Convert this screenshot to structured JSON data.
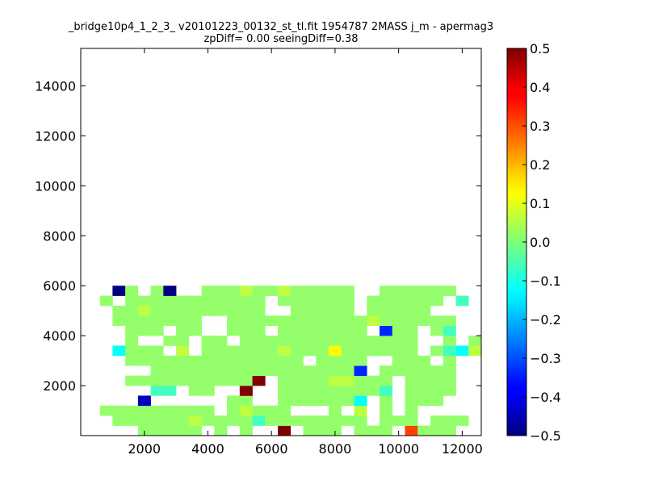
{
  "chart_data": {
    "type": "heatmap",
    "title": "_bridge10p4_1_2_3_ v20101223_00132_st_tl.fit 1954787 2MASS j_m - apermag3",
    "subtitle": "zpDiff= 0.00 seeingDiff=0.38",
    "xlabel": "",
    "ylabel": "",
    "xlim": [
      0,
      12600
    ],
    "ylim": [
      0,
      15500
    ],
    "xticks": [
      2000,
      4000,
      6000,
      8000,
      10000,
      12000
    ],
    "yticks": [
      2000,
      4000,
      6000,
      8000,
      10000,
      12000,
      14000
    ],
    "grid": false,
    "bin_size": 400,
    "x_origin": 600,
    "y_origin": 0,
    "colormap": "jet",
    "colorbar": {
      "min": -0.5,
      "max": 0.5,
      "ticks": [
        -0.5,
        -0.4,
        -0.3,
        -0.2,
        -0.1,
        0.0,
        0.1,
        0.2,
        0.3,
        0.4,
        0.5
      ]
    },
    "rows": [
      "...ggggg.g.g..a.ggg.ggg.dggg...",
      ".ggggggeggggfgggggggg.ggg.ggg..",
      "ggggggggg.geggg...g.e.g.g.....",
      "...k......gg..ggggggh.g.ggg....",
      "....ff.gg..a..ggggggggf.gggg...",
      "..gggggggggga.ggggeeggg.gggg...",
      "....ggggggggggggggggj.gggggg...",
      "..gggggggggggggg.gggg..ggg.g...",
      ".hggg.e.ggggggegggcgggggg.gfhe.",
      "..g..gg.gg.gggggggggggggg..g.g.",
      "..ggg.gg..ggg.ggggggg.jgg.gf...",
      ".ggggggg..gggggggggggegggggg...",
      ".ggeggggggggg..ggggg.ggggg.....",
      "g.ggggggggggg.gggggg.gggggg.f..",
      ".ig.gi..gggeggeggggg..gggggg..."
    ],
    "legend": {
      "a": 0.5,
      "b": 0.39,
      "c": 0.13,
      "d": 0.31,
      "e": 0.06,
      "f": -0.06,
      "g": 0.02,
      "h": -0.12,
      "i": -0.5,
      "j": -0.34,
      "k": -0.44,
      ".": null
    }
  }
}
